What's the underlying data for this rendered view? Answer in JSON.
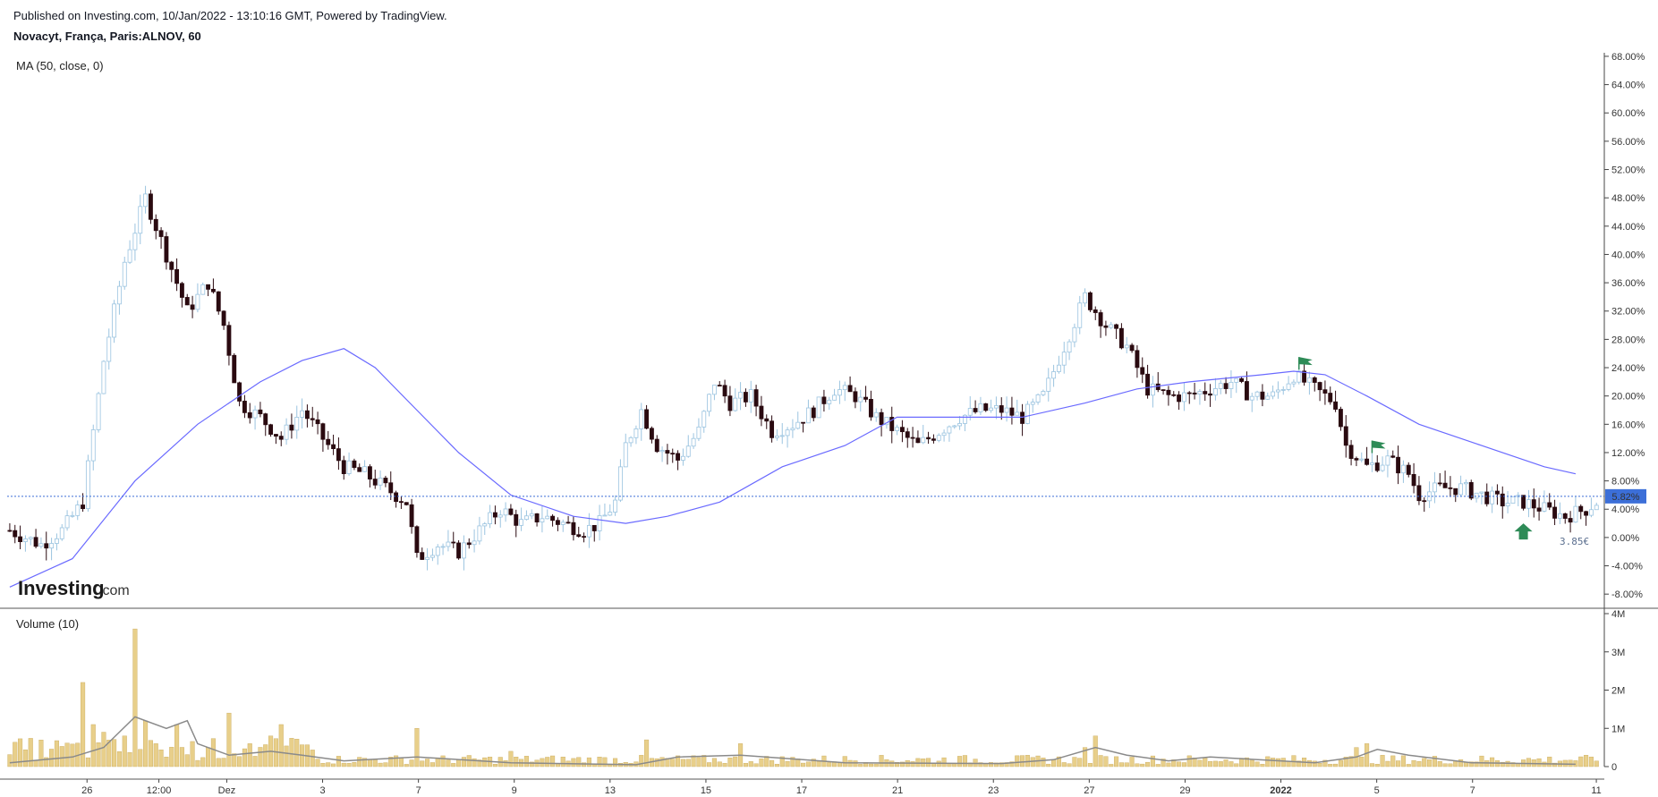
{
  "header": {
    "published": "Published on Investing.com, 10/Jan/2022 - 13:10:16 GMT, Powered by TradingView.",
    "symbol": "Novacyt, França, Paris:ALNOV, 60"
  },
  "indicators": {
    "ma_label": "MA (50, close, 0)",
    "volume_label": "Volume (10)"
  },
  "branding": {
    "logo_text": "Investing",
    "logo_suffix": ".com"
  },
  "annotations": {
    "last_price_label": "3.85€"
  },
  "colors": {
    "bull_body": "#ffffff",
    "bull_border": "#9bc4e0",
    "bear_body": "#2a0a10",
    "ma_line": "#6a6aff",
    "volume_bar": "#e8cf8a",
    "volume_ma": "#8a8a8a",
    "last_value_tag": "#3c6fd8",
    "flag": "#2e8b57"
  },
  "chart_data": [
    {
      "type": "candlestick",
      "y_axis_ticks": [
        "68.00%",
        "64.00%",
        "60.00%",
        "56.00%",
        "52.00%",
        "48.00%",
        "44.00%",
        "40.00%",
        "36.00%",
        "32.00%",
        "28.00%",
        "24.00%",
        "20.00%",
        "16.00%",
        "12.00%",
        "8.00%",
        "4.00%",
        "0.00%",
        "-4.00%",
        "-8.00%"
      ],
      "ylim": [
        -10,
        68.5
      ],
      "y_unit": "%",
      "x_axis_ticks": [
        "26",
        "12:00",
        "Dez",
        "3",
        "7",
        "9",
        "13",
        "15",
        "17",
        "21",
        "23",
        "27",
        "29",
        "2022",
        "5",
        "7",
        "11"
      ],
      "last_value": "5.82%",
      "last_value_pct": 5.82,
      "close_path": [
        [
          0,
          1
        ],
        [
          6,
          -1
        ],
        [
          10,
          1
        ],
        [
          14,
          5
        ],
        [
          18,
          25
        ],
        [
          22,
          39
        ],
        [
          26,
          48
        ],
        [
          30,
          40
        ],
        [
          34,
          32
        ],
        [
          38,
          36
        ],
        [
          41,
          30
        ],
        [
          44,
          19
        ],
        [
          48,
          17
        ],
        [
          52,
          14
        ],
        [
          56,
          18
        ],
        [
          60,
          14
        ],
        [
          64,
          10
        ],
        [
          68,
          9
        ],
        [
          72,
          7
        ],
        [
          76,
          5
        ],
        [
          78,
          -3
        ],
        [
          82,
          -1
        ],
        [
          86,
          -2
        ],
        [
          90,
          1
        ],
        [
          94,
          4
        ],
        [
          98,
          2
        ],
        [
          102,
          3
        ],
        [
          106,
          2
        ],
        [
          110,
          1
        ],
        [
          113,
          2
        ],
        [
          116,
          5
        ],
        [
          118,
          13
        ],
        [
          121,
          18
        ],
        [
          124,
          13
        ],
        [
          128,
          11
        ],
        [
          132,
          15
        ],
        [
          135,
          22
        ],
        [
          138,
          19
        ],
        [
          142,
          20
        ],
        [
          146,
          15
        ],
        [
          150,
          16
        ],
        [
          154,
          18
        ],
        [
          158,
          21
        ],
        [
          162,
          20
        ],
        [
          166,
          17
        ],
        [
          170,
          15
        ],
        [
          174,
          13
        ],
        [
          178,
          15
        ],
        [
          182,
          17
        ],
        [
          186,
          18
        ],
        [
          190,
          18
        ],
        [
          194,
          17
        ],
        [
          198,
          20
        ],
        [
          202,
          27
        ],
        [
          206,
          34
        ],
        [
          210,
          30
        ],
        [
          214,
          27
        ],
        [
          218,
          21
        ],
        [
          222,
          20
        ],
        [
          226,
          20
        ],
        [
          230,
          21
        ],
        [
          234,
          22
        ],
        [
          238,
          20
        ],
        [
          242,
          20
        ],
        [
          246,
          23
        ],
        [
          250,
          21
        ],
        [
          254,
          19
        ],
        [
          256,
          13
        ],
        [
          260,
          10
        ],
        [
          264,
          11
        ],
        [
          268,
          9
        ],
        [
          270,
          6
        ],
        [
          274,
          7
        ],
        [
          278,
          7
        ],
        [
          282,
          6
        ],
        [
          286,
          5
        ],
        [
          290,
          5
        ],
        [
          294,
          4
        ],
        [
          298,
          3
        ],
        [
          302,
          4
        ],
        [
          304,
          5
        ]
      ],
      "series": [
        {
          "name": "MA (50, close, 0)",
          "points": [
            [
              0,
              -7
            ],
            [
              12,
              -3
            ],
            [
              24,
              8
            ],
            [
              36,
              16
            ],
            [
              48,
              22
            ],
            [
              56,
              25
            ],
            [
              64,
              26.7
            ],
            [
              70,
              24
            ],
            [
              78,
              18
            ],
            [
              86,
              12
            ],
            [
              96,
              6
            ],
            [
              108,
              3
            ],
            [
              118,
              2
            ],
            [
              126,
              3
            ],
            [
              136,
              5
            ],
            [
              148,
              10
            ],
            [
              160,
              13
            ],
            [
              170,
              17
            ],
            [
              180,
              17
            ],
            [
              194,
              17
            ],
            [
              206,
              19
            ],
            [
              216,
              21
            ],
            [
              226,
              22
            ],
            [
              240,
              23
            ],
            [
              246,
              23.5
            ],
            [
              252,
              23
            ],
            [
              260,
              20
            ],
            [
              270,
              16
            ],
            [
              282,
              13
            ],
            [
              294,
              10
            ],
            [
              300,
              9
            ]
          ]
        }
      ],
      "markers": [
        {
          "type": "flag",
          "bar": 247,
          "pct": 25.5
        },
        {
          "type": "flag",
          "bar": 261,
          "pct": 13.7
        },
        {
          "type": "arrow-up",
          "bar": 290,
          "pct": 2.0
        }
      ]
    },
    {
      "type": "bar",
      "title": "Volume (10)",
      "y_axis_ticks": [
        "4M",
        "3M",
        "2M",
        "1M",
        "0"
      ],
      "ylim": [
        0,
        4000000
      ],
      "spikes": [
        [
          14,
          2200000
        ],
        [
          16,
          1100000
        ],
        [
          18,
          900000
        ],
        [
          22,
          800000
        ],
        [
          24,
          3600000
        ],
        [
          26,
          1200000
        ],
        [
          28,
          600000
        ],
        [
          32,
          1100000
        ],
        [
          38,
          500000
        ],
        [
          42,
          1400000
        ],
        [
          46,
          600000
        ],
        [
          50,
          800000
        ],
        [
          52,
          1100000
        ],
        [
          78,
          1000000
        ],
        [
          96,
          400000
        ],
        [
          122,
          700000
        ],
        [
          140,
          600000
        ],
        [
          206,
          500000
        ],
        [
          208,
          800000
        ],
        [
          258,
          500000
        ],
        [
          260,
          600000
        ]
      ],
      "baseline": 150000,
      "ma_path": [
        [
          0,
          100000
        ],
        [
          12,
          250000
        ],
        [
          18,
          500000
        ],
        [
          24,
          1300000
        ],
        [
          30,
          1000000
        ],
        [
          34,
          1200000
        ],
        [
          36,
          600000
        ],
        [
          42,
          300000
        ],
        [
          50,
          400000
        ],
        [
          56,
          300000
        ],
        [
          64,
          150000
        ],
        [
          78,
          250000
        ],
        [
          96,
          100000
        ],
        [
          120,
          50000
        ],
        [
          128,
          250000
        ],
        [
          140,
          300000
        ],
        [
          160,
          100000
        ],
        [
          190,
          80000
        ],
        [
          200,
          180000
        ],
        [
          208,
          500000
        ],
        [
          214,
          300000
        ],
        [
          222,
          150000
        ],
        [
          230,
          250000
        ],
        [
          250,
          100000
        ],
        [
          258,
          250000
        ],
        [
          262,
          450000
        ],
        [
          268,
          300000
        ],
        [
          280,
          100000
        ],
        [
          300,
          60000
        ]
      ]
    }
  ]
}
